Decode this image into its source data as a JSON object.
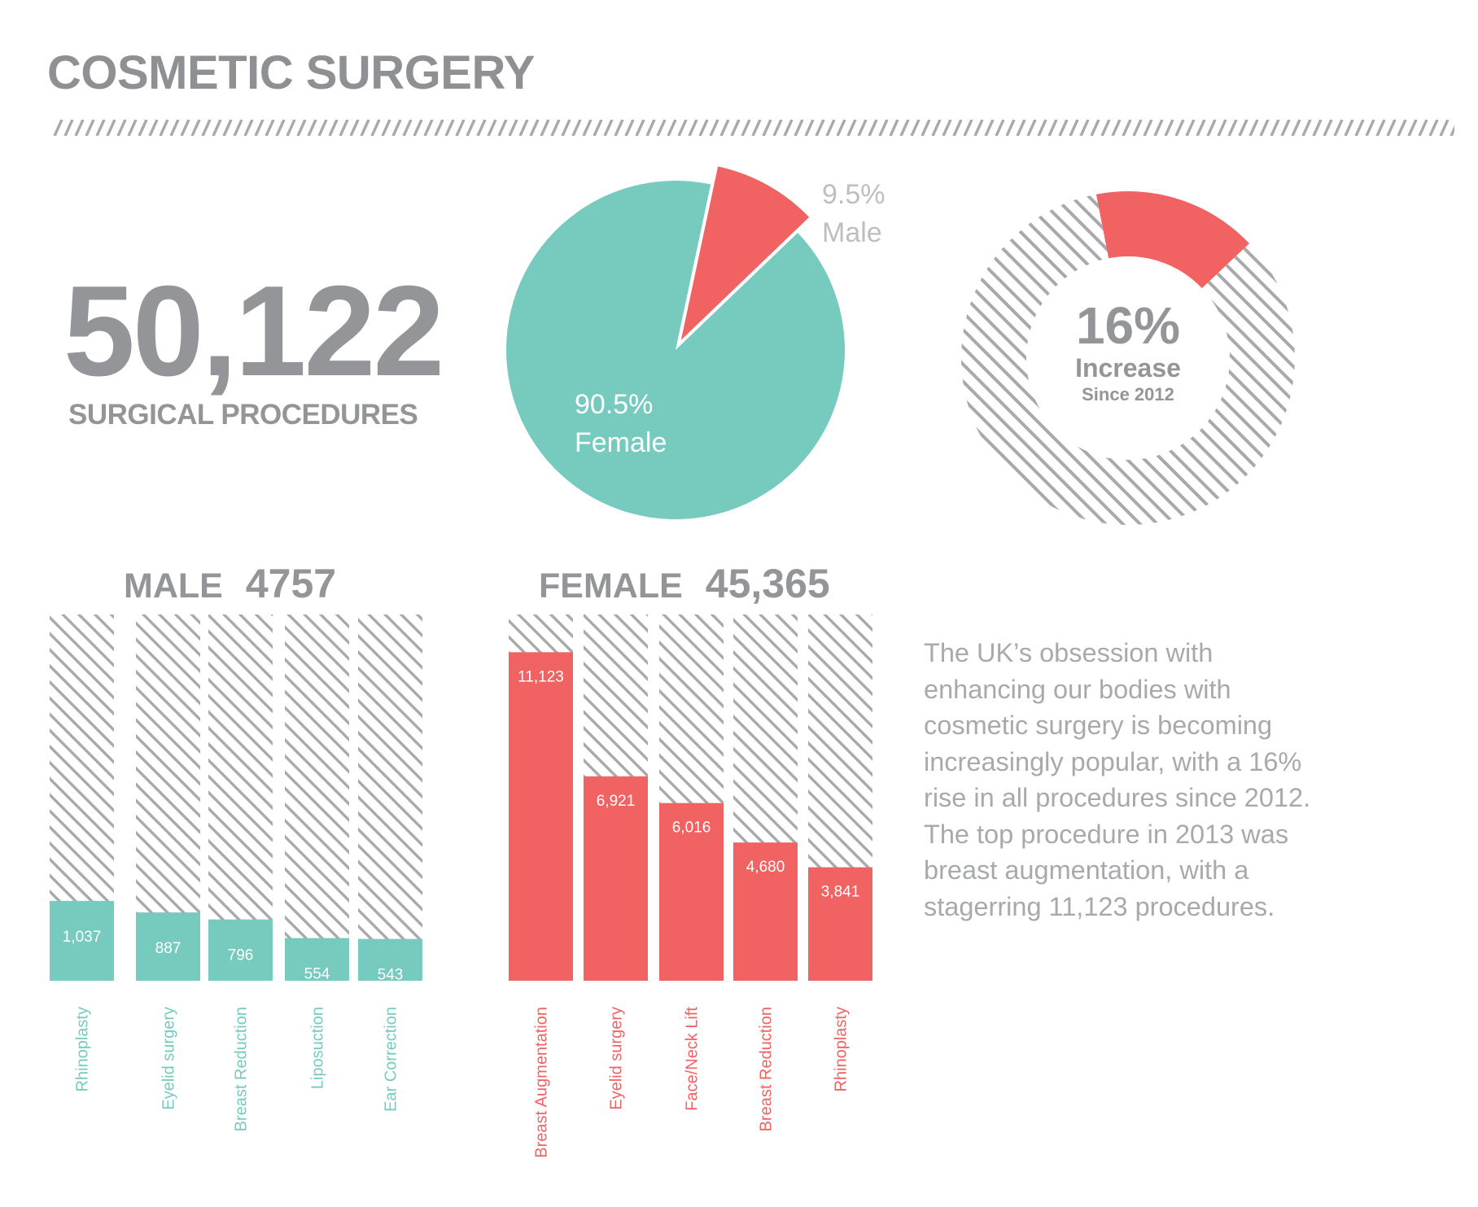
{
  "title": "COSMETIC SURGERY",
  "total": {
    "value": "50,122",
    "caption": "SURGICAL PROCEDURES"
  },
  "colors": {
    "teal": "#76cabe",
    "coral": "#f06362",
    "gray": "#939598",
    "hatch": "#a7a9ac",
    "text_light": "#a7a9ac"
  },
  "gender_pie": {
    "female_pct_label": "90.5%",
    "female_label": "Female",
    "male_pct_label": "9.5%",
    "male_label": "Male"
  },
  "increase": {
    "value_label": "16%",
    "label": "Increase",
    "sublabel": "Since 2012"
  },
  "male_section": {
    "label": "MALE",
    "total": "4757"
  },
  "female_section": {
    "label": "FEMALE",
    "total": "45,365"
  },
  "description": "The UK’s obsession with enhancing our bodies with cosmetic surgery is becoming increasingly popular, with a 16% rise in all procedures since 2012. The top procedure in 2013 was breast augmentation, with a stagerring 11,123 procedures.",
  "chart_data": [
    {
      "type": "pie",
      "categories": [
        "Female",
        "Male"
      ],
      "values": [
        90.5,
        9.5
      ],
      "data_labels": [
        "90.5%",
        "9.5%"
      ],
      "colors": [
        "#76cabe",
        "#f06362"
      ]
    },
    {
      "type": "pie",
      "variant": "donut",
      "categories": [
        "Increase"
      ],
      "values": [
        16
      ],
      "data_labels": [
        "16%"
      ],
      "center_label": "Increase",
      "center_sublabel": "Since 2012",
      "colors": [
        "#f06362"
      ]
    },
    {
      "type": "bar",
      "title": "MALE 4757",
      "categories": [
        "Rhinoplasty",
        "Eyelid surgery",
        "Breast Reduction",
        "Liposuction",
        "Ear Correction"
      ],
      "values": [
        1037,
        887,
        796,
        554,
        543
      ],
      "data_labels": [
        "1,037",
        "887",
        "796",
        "554",
        "543"
      ],
      "ylim": [
        0,
        4757
      ],
      "color": "#76cabe",
      "background": "hatched"
    },
    {
      "type": "bar",
      "title": "FEMALE 45,365",
      "categories": [
        "Breast Augmentation",
        "Eyelid surgery",
        "Face/Neck Lift",
        "Breast Reduction",
        "Rhinoplasty"
      ],
      "values": [
        11123,
        6921,
        6016,
        4680,
        3841
      ],
      "data_labels": [
        "11,123",
        "6,921",
        "6,016",
        "4,680",
        "3,841"
      ],
      "ylim": [
        0,
        12400
      ],
      "color": "#f06362",
      "background": "hatched"
    }
  ]
}
